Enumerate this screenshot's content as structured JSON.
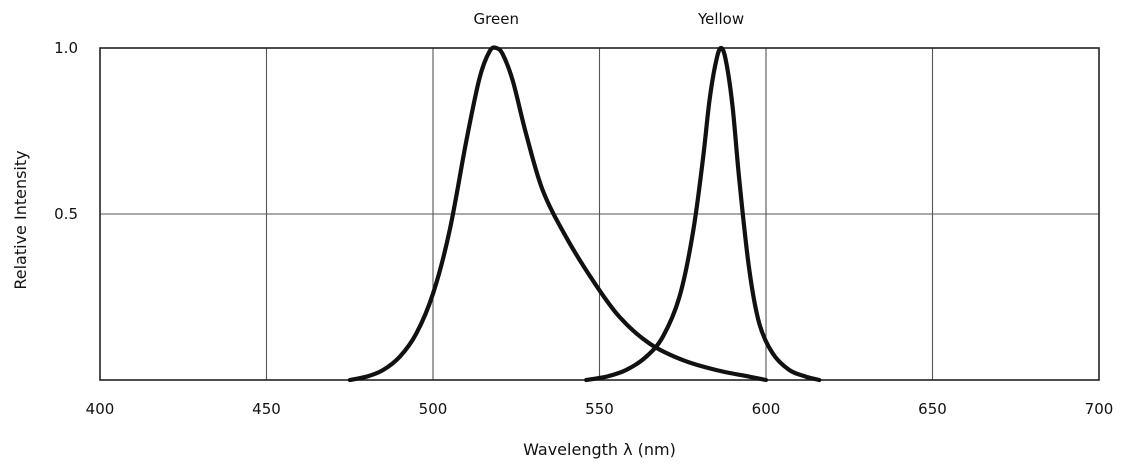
{
  "chart_data": {
    "type": "line",
    "title": "",
    "xlabel": "Wavelength λ (nm)",
    "ylabel": "Relative Intensity",
    "xlim": [
      400,
      700
    ],
    "ylim": [
      0,
      1.0
    ],
    "x_ticks": [
      "400",
      "450",
      "500",
      "550",
      "600",
      "650",
      "700"
    ],
    "y_ticks": [
      {
        "value": 0.5,
        "label": "0.5"
      },
      {
        "value": 1.0,
        "label": "1.0"
      }
    ],
    "grid": true,
    "line_color": "#111111",
    "series": [
      {
        "name": "Green",
        "x": [
          475,
          480,
          485,
          490,
          495,
          500,
          505,
          510,
          514,
          517,
          519,
          521,
          524,
          528,
          533,
          540,
          548,
          556,
          565,
          575,
          585,
          595,
          600
        ],
        "y": [
          0.0,
          0.01,
          0.03,
          0.07,
          0.14,
          0.26,
          0.45,
          0.72,
          0.91,
          0.99,
          1.0,
          0.98,
          0.9,
          0.74,
          0.57,
          0.43,
          0.3,
          0.19,
          0.11,
          0.06,
          0.03,
          0.01,
          0.0
        ]
      },
      {
        "name": "Yellow",
        "x": [
          546,
          552,
          558,
          564,
          569,
          574,
          578,
          581,
          583,
          585,
          586.5,
          588,
          590,
          592,
          595,
          598,
          602,
          607,
          612,
          616
        ],
        "y": [
          0.0,
          0.01,
          0.03,
          0.07,
          0.13,
          0.25,
          0.44,
          0.66,
          0.84,
          0.96,
          1.0,
          0.96,
          0.82,
          0.6,
          0.33,
          0.17,
          0.08,
          0.03,
          0.01,
          0.0
        ]
      }
    ]
  }
}
